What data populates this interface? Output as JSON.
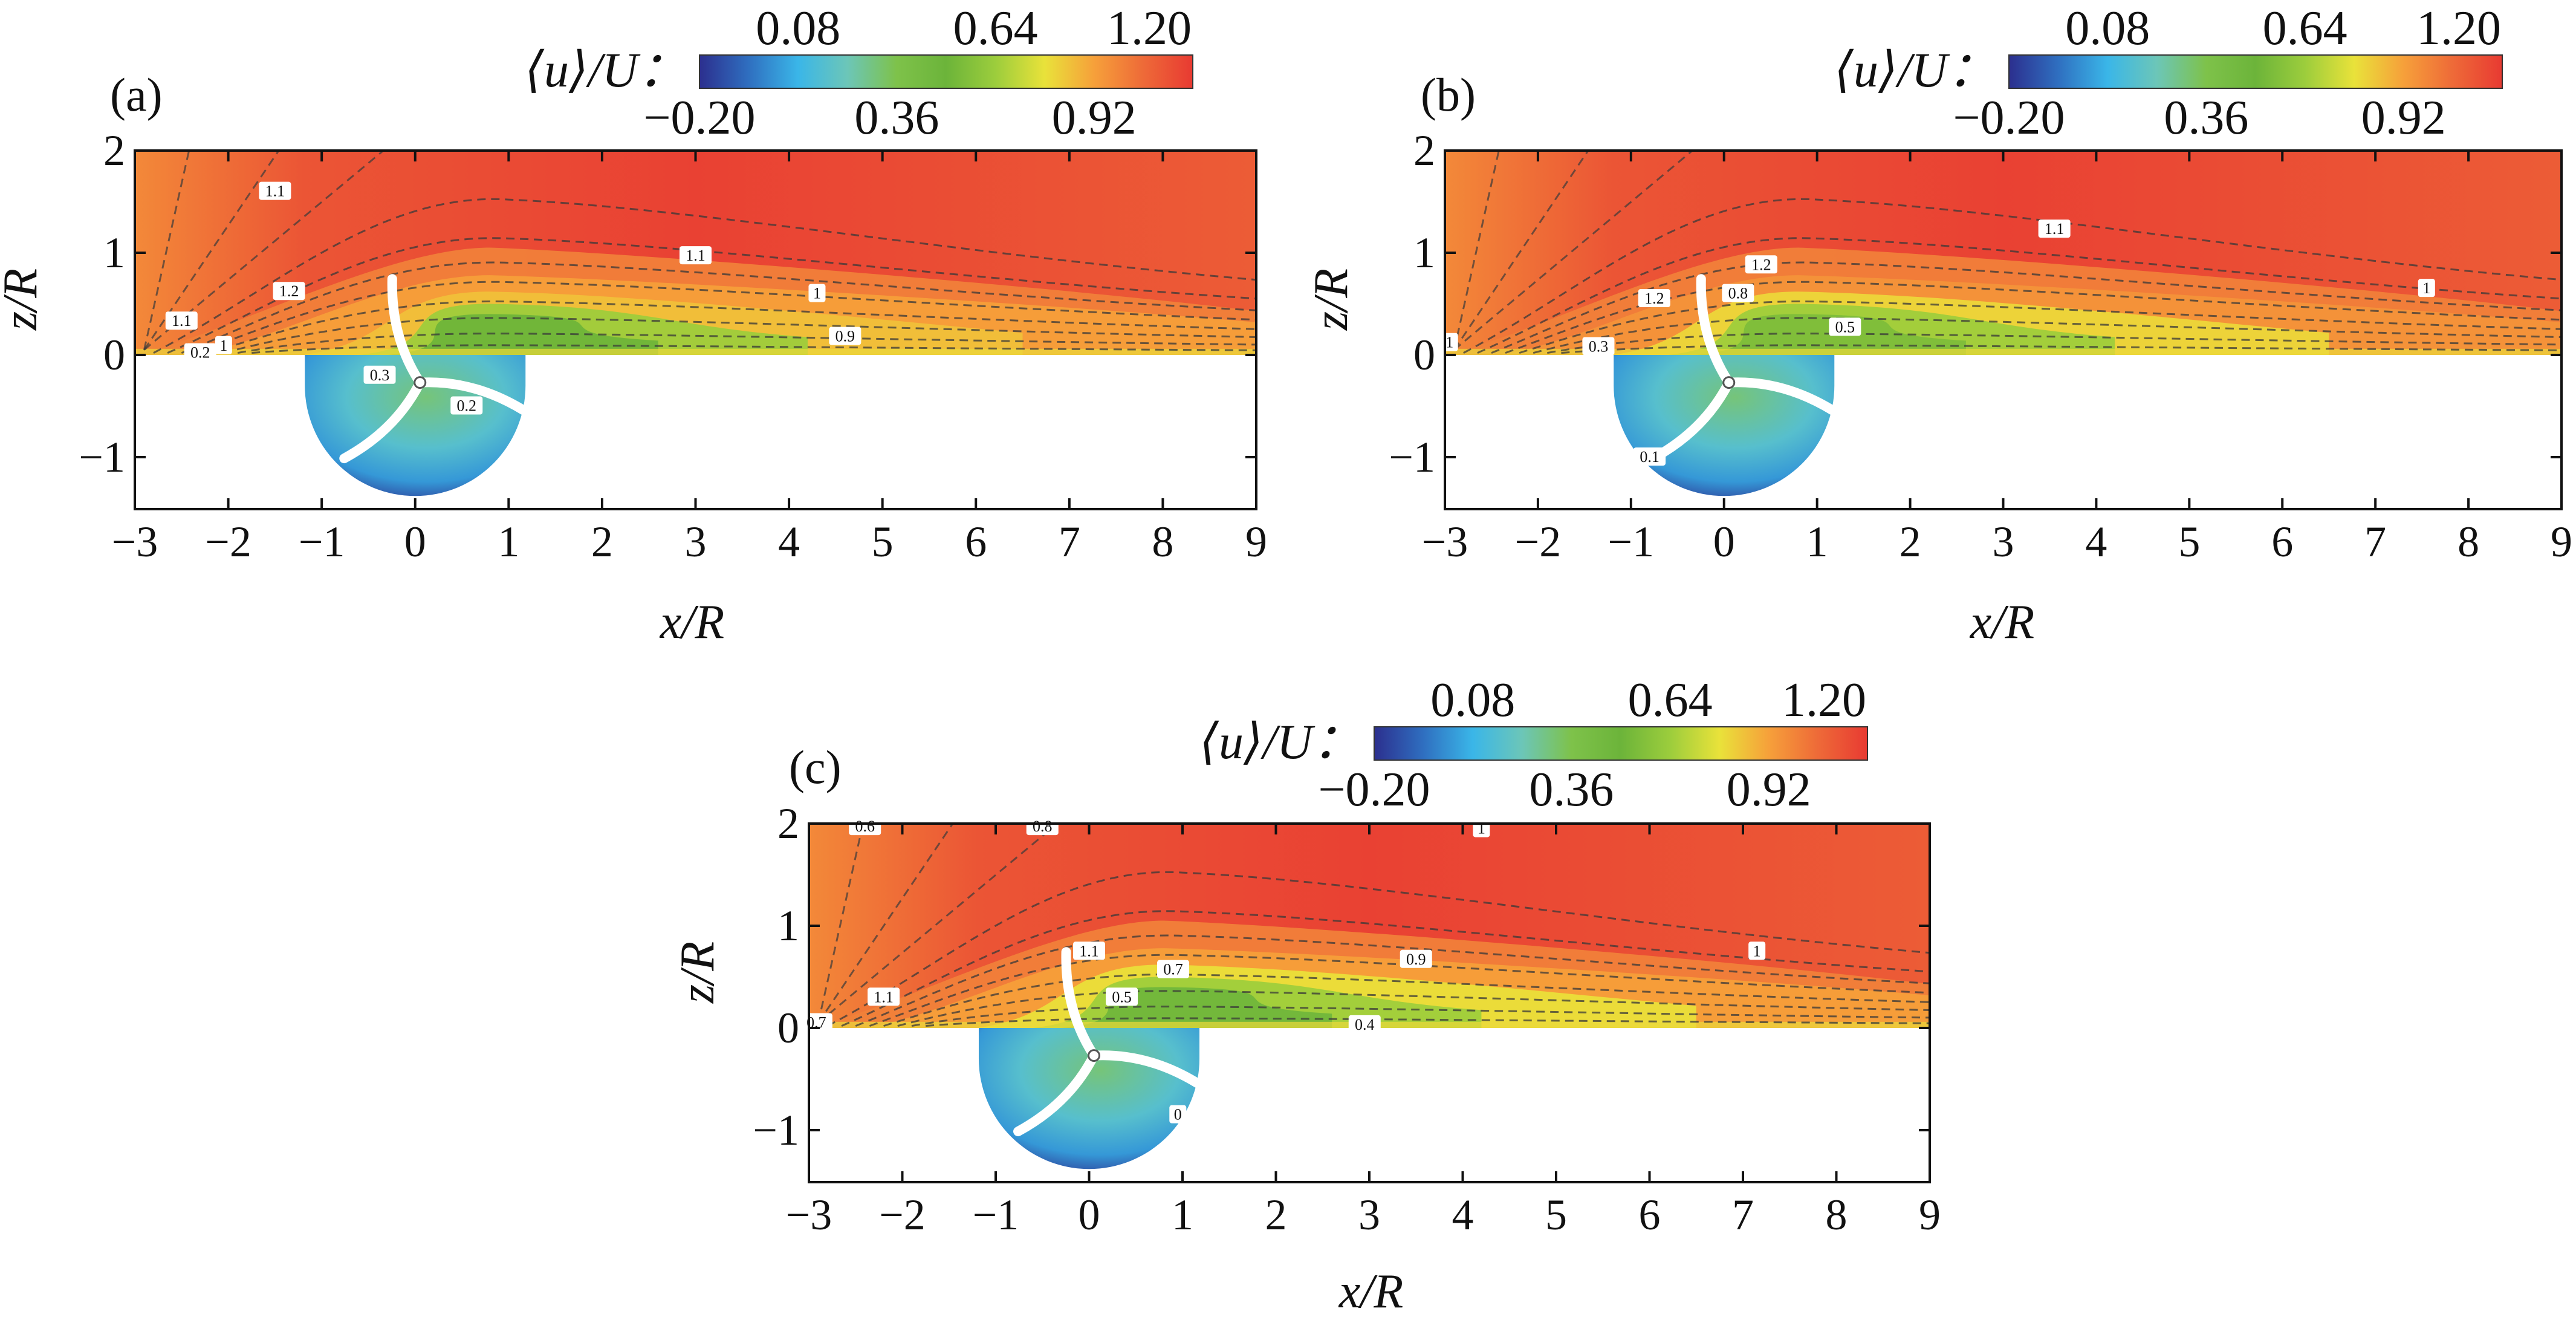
{
  "colormap": {
    "stops": [
      {
        "v": -0.2,
        "c": "#2c2f8e"
      },
      {
        "v": -0.06,
        "c": "#2f6fc0"
      },
      {
        "v": 0.08,
        "c": "#3ab6e8"
      },
      {
        "v": 0.22,
        "c": "#6cc6b8"
      },
      {
        "v": 0.36,
        "c": "#7ec24a"
      },
      {
        "v": 0.5,
        "c": "#6cb43a"
      },
      {
        "v": 0.64,
        "c": "#9ccd3c"
      },
      {
        "v": 0.78,
        "c": "#e9e23a"
      },
      {
        "v": 0.92,
        "c": "#f6a03a"
      },
      {
        "v": 1.06,
        "c": "#ee6a38"
      },
      {
        "v": 1.2,
        "c": "#e83a32"
      }
    ]
  },
  "colorbar": {
    "title": "⟨u⟩/U：",
    "top_ticks": [
      "0.08",
      "0.64",
      "1.20"
    ],
    "bottom_ticks": [
      "−0.20",
      "0.36",
      "0.92"
    ]
  },
  "chart_data": [
    {
      "type": "heatmap",
      "panel_label": "(a)",
      "xlabel": "x/R",
      "ylabel": "z/R",
      "xlim": [
        -3,
        9
      ],
      "ylim": [
        -1.5,
        2
      ],
      "x_ticks": [
        "−3",
        "−2",
        "−1",
        "0",
        "1",
        "2",
        "3",
        "4",
        "5",
        "6",
        "7",
        "8",
        "9"
      ],
      "y_ticks": [
        "−1",
        "0",
        "1",
        "2"
      ],
      "value_range": [
        -0.2,
        1.2
      ],
      "contour_labels": [
        {
          "text": "1.1",
          "x": -1.5,
          "z": 1.6
        },
        {
          "text": "1.2",
          "x": -1.35,
          "z": 0.62
        },
        {
          "text": "1.1",
          "x": -2.5,
          "z": 0.33
        },
        {
          "text": "0.2",
          "x": -2.3,
          "z": 0.02
        },
        {
          "text": "1",
          "x": -2.05,
          "z": 0.09
        },
        {
          "text": "0.3",
          "x": -0.38,
          "z": -0.2
        },
        {
          "text": "0.2",
          "x": 0.55,
          "z": -0.5
        },
        {
          "text": "1.1",
          "x": 3.0,
          "z": 0.97
        },
        {
          "text": "1",
          "x": 4.3,
          "z": 0.6
        },
        {
          "text": "0.9",
          "x": 4.6,
          "z": 0.18
        }
      ]
    },
    {
      "type": "heatmap",
      "panel_label": "(b)",
      "xlabel": "x/R",
      "ylabel": "z/R",
      "xlim": [
        -3,
        9
      ],
      "ylim": [
        -1.5,
        2
      ],
      "x_ticks": [
        "−3",
        "−2",
        "−1",
        "0",
        "1",
        "2",
        "3",
        "4",
        "5",
        "6",
        "7",
        "8",
        "9"
      ],
      "y_ticks": [
        "−1",
        "0",
        "1",
        "2"
      ],
      "value_range": [
        -0.2,
        1.2
      ],
      "contour_labels": [
        {
          "text": "1.1",
          "x": 3.55,
          "z": 1.23
        },
        {
          "text": "1.2",
          "x": 0.4,
          "z": 0.88
        },
        {
          "text": "1.2",
          "x": -0.75,
          "z": 0.55
        },
        {
          "text": "0.8",
          "x": 0.15,
          "z": 0.6
        },
        {
          "text": "0.5",
          "x": 1.3,
          "z": 0.27
        },
        {
          "text": "1",
          "x": 7.55,
          "z": 0.65
        },
        {
          "text": "0.3",
          "x": -1.35,
          "z": 0.08
        },
        {
          "text": "0.1",
          "x": -0.8,
          "z": -1.0
        },
        {
          "text": "1",
          "x": -2.95,
          "z": 0.12
        }
      ]
    },
    {
      "type": "heatmap",
      "panel_label": "(c)",
      "xlabel": "x/R",
      "ylabel": "z/R",
      "xlim": [
        -3,
        9
      ],
      "ylim": [
        -1.5,
        2
      ],
      "x_ticks": [
        "−3",
        "−2",
        "−1",
        "0",
        "1",
        "2",
        "3",
        "4",
        "5",
        "6",
        "7",
        "8",
        "9"
      ],
      "y_ticks": [
        "−1",
        "0",
        "1",
        "2"
      ],
      "value_range": [
        -0.2,
        1.2
      ],
      "contour_labels": [
        {
          "text": "0.6",
          "x": -2.4,
          "z": 1.97
        },
        {
          "text": "0.8",
          "x": -0.5,
          "z": 1.97
        },
        {
          "text": "1",
          "x": 4.2,
          "z": 1.95
        },
        {
          "text": "1.1",
          "x": 0.0,
          "z": 0.75
        },
        {
          "text": "0.7",
          "x": 0.9,
          "z": 0.57
        },
        {
          "text": "0.5",
          "x": 0.35,
          "z": 0.3
        },
        {
          "text": "0.9",
          "x": 3.5,
          "z": 0.67
        },
        {
          "text": "1",
          "x": 7.15,
          "z": 0.75
        },
        {
          "text": "1.1",
          "x": -2.2,
          "z": 0.3
        },
        {
          "text": "0.7",
          "x": -2.92,
          "z": 0.05
        },
        {
          "text": "0.4",
          "x": 2.95,
          "z": 0.03
        },
        {
          "text": "0",
          "x": 0.95,
          "z": -0.85
        }
      ]
    }
  ]
}
